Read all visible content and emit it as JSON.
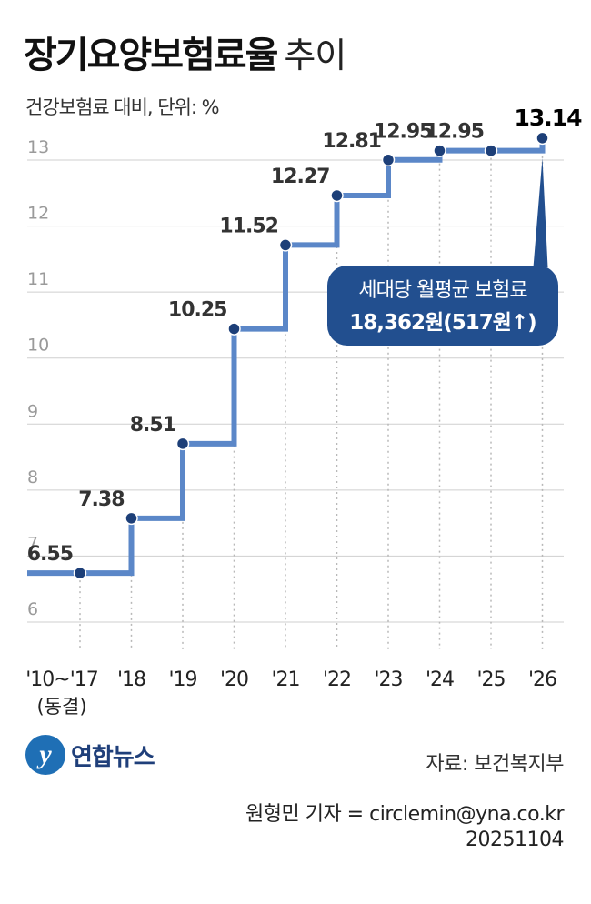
{
  "title": "장기요양보험료율",
  "title_suffix": "추이",
  "subtitle": "건강보험료 대비, 단위: %",
  "callout": {
    "line1": "세대당 월평균 보험료",
    "line2": "18,362원(517원↑)"
  },
  "source": "자료: 보건복지부",
  "credit_line1": "원형민 기자 = circlemin@yna.co.kr",
  "credit_line2": "20251104",
  "logo_mark": "y",
  "logo_text": "연합뉴스",
  "colors": {
    "line": "#5b87c8",
    "dot": "#1d3f78",
    "callout": "#224f8f",
    "grid": "#cfcfcf",
    "tick": "#9a9a9a"
  },
  "chart_data": {
    "type": "line",
    "step": true,
    "categories": [
      "'10~'17",
      "'18",
      "'19",
      "'20",
      "'21",
      "'22",
      "'23",
      "'24",
      "'25",
      "'26"
    ],
    "category_sublabels": [
      "(동결)",
      "",
      "",
      "",
      "",
      "",
      "",
      "",
      "",
      ""
    ],
    "values": [
      6.55,
      7.38,
      8.51,
      10.25,
      11.52,
      12.27,
      12.81,
      12.95,
      12.95,
      13.14
    ],
    "data_labels": [
      "6.55",
      "7.38",
      "8.51",
      "10.25",
      "11.52",
      "12.27",
      "12.81",
      "12.95",
      "12.95",
      "13.14"
    ],
    "y_ticks": [
      6,
      7,
      8,
      9,
      10,
      11,
      12,
      13
    ],
    "ylim": [
      6,
      13
    ],
    "grid": true,
    "title": "장기요양보험료율 추이",
    "xlabel": "",
    "ylabel": "건강보험료 대비, 단위: %"
  }
}
